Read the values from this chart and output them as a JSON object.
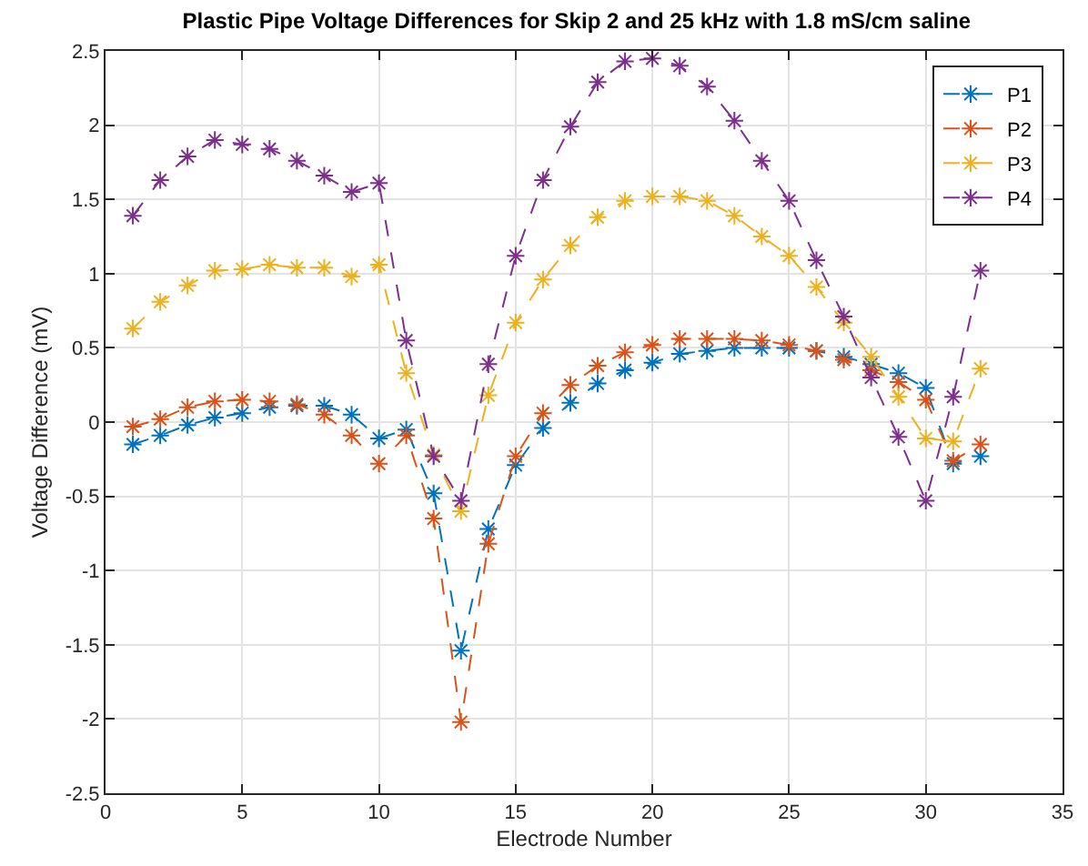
{
  "chart_data": {
    "type": "line",
    "title": "Plastic Pipe Voltage Differences for Skip 2 and 25 kHz with 1.8 mS/cm saline",
    "xlabel": "Electrode Number",
    "ylabel": "Voltage Difference (mV)",
    "x": [
      1,
      2,
      3,
      4,
      5,
      6,
      7,
      8,
      9,
      10,
      11,
      12,
      13,
      14,
      15,
      16,
      17,
      18,
      19,
      20,
      21,
      22,
      23,
      24,
      25,
      26,
      27,
      28,
      29,
      30,
      31,
      32
    ],
    "series": [
      {
        "name": "P1",
        "color": "#0072bd",
        "values": [
          -0.15,
          -0.09,
          -0.02,
          0.03,
          0.06,
          0.1,
          0.11,
          0.11,
          0.05,
          -0.11,
          -0.05,
          -0.48,
          -1.54,
          -0.72,
          -0.29,
          -0.04,
          0.13,
          0.26,
          0.35,
          0.4,
          0.46,
          0.48,
          0.5,
          0.5,
          0.5,
          0.48,
          0.44,
          0.39,
          0.33,
          0.23,
          -0.28,
          -0.23
        ]
      },
      {
        "name": "P2",
        "color": "#d95319",
        "values": [
          -0.03,
          0.02,
          0.1,
          0.14,
          0.15,
          0.14,
          0.12,
          0.05,
          -0.09,
          -0.28,
          -0.09,
          -0.65,
          -2.02,
          -0.82,
          -0.23,
          0.06,
          0.25,
          0.38,
          0.47,
          0.52,
          0.56,
          0.56,
          0.56,
          0.55,
          0.52,
          0.48,
          0.42,
          0.35,
          0.27,
          0.15,
          -0.26,
          -0.15
        ]
      },
      {
        "name": "P3",
        "color": "#edb120",
        "values": [
          0.63,
          0.81,
          0.92,
          1.02,
          1.03,
          1.06,
          1.04,
          1.04,
          0.98,
          1.06,
          0.33,
          -0.22,
          -0.6,
          0.18,
          0.67,
          0.96,
          1.19,
          1.38,
          1.49,
          1.52,
          1.52,
          1.49,
          1.39,
          1.25,
          1.12,
          0.91,
          0.67,
          0.44,
          0.17,
          -0.11,
          -0.13,
          0.36
        ]
      },
      {
        "name": "P4",
        "color": "#7e2f8e",
        "values": [
          1.39,
          1.63,
          1.79,
          1.9,
          1.87,
          1.84,
          1.76,
          1.66,
          1.55,
          1.61,
          0.55,
          -0.23,
          -0.53,
          0.39,
          1.12,
          1.63,
          1.99,
          2.29,
          2.43,
          2.45,
          2.4,
          2.26,
          2.03,
          1.76,
          1.49,
          1.09,
          0.71,
          0.3,
          -0.1,
          -0.53,
          0.17,
          1.02
        ]
      }
    ],
    "xlim": [
      0,
      35
    ],
    "xticks": [
      0,
      5,
      10,
      15,
      20,
      25,
      30,
      35
    ],
    "ylim": [
      -2.5,
      2.5
    ],
    "yticks": [
      -2.5,
      -2,
      -1.5,
      -1,
      -0.5,
      0,
      0.5,
      1,
      1.5,
      2,
      2.5
    ],
    "grid": true,
    "legend": "top right",
    "marker": "cross",
    "line_style": "dashed"
  }
}
